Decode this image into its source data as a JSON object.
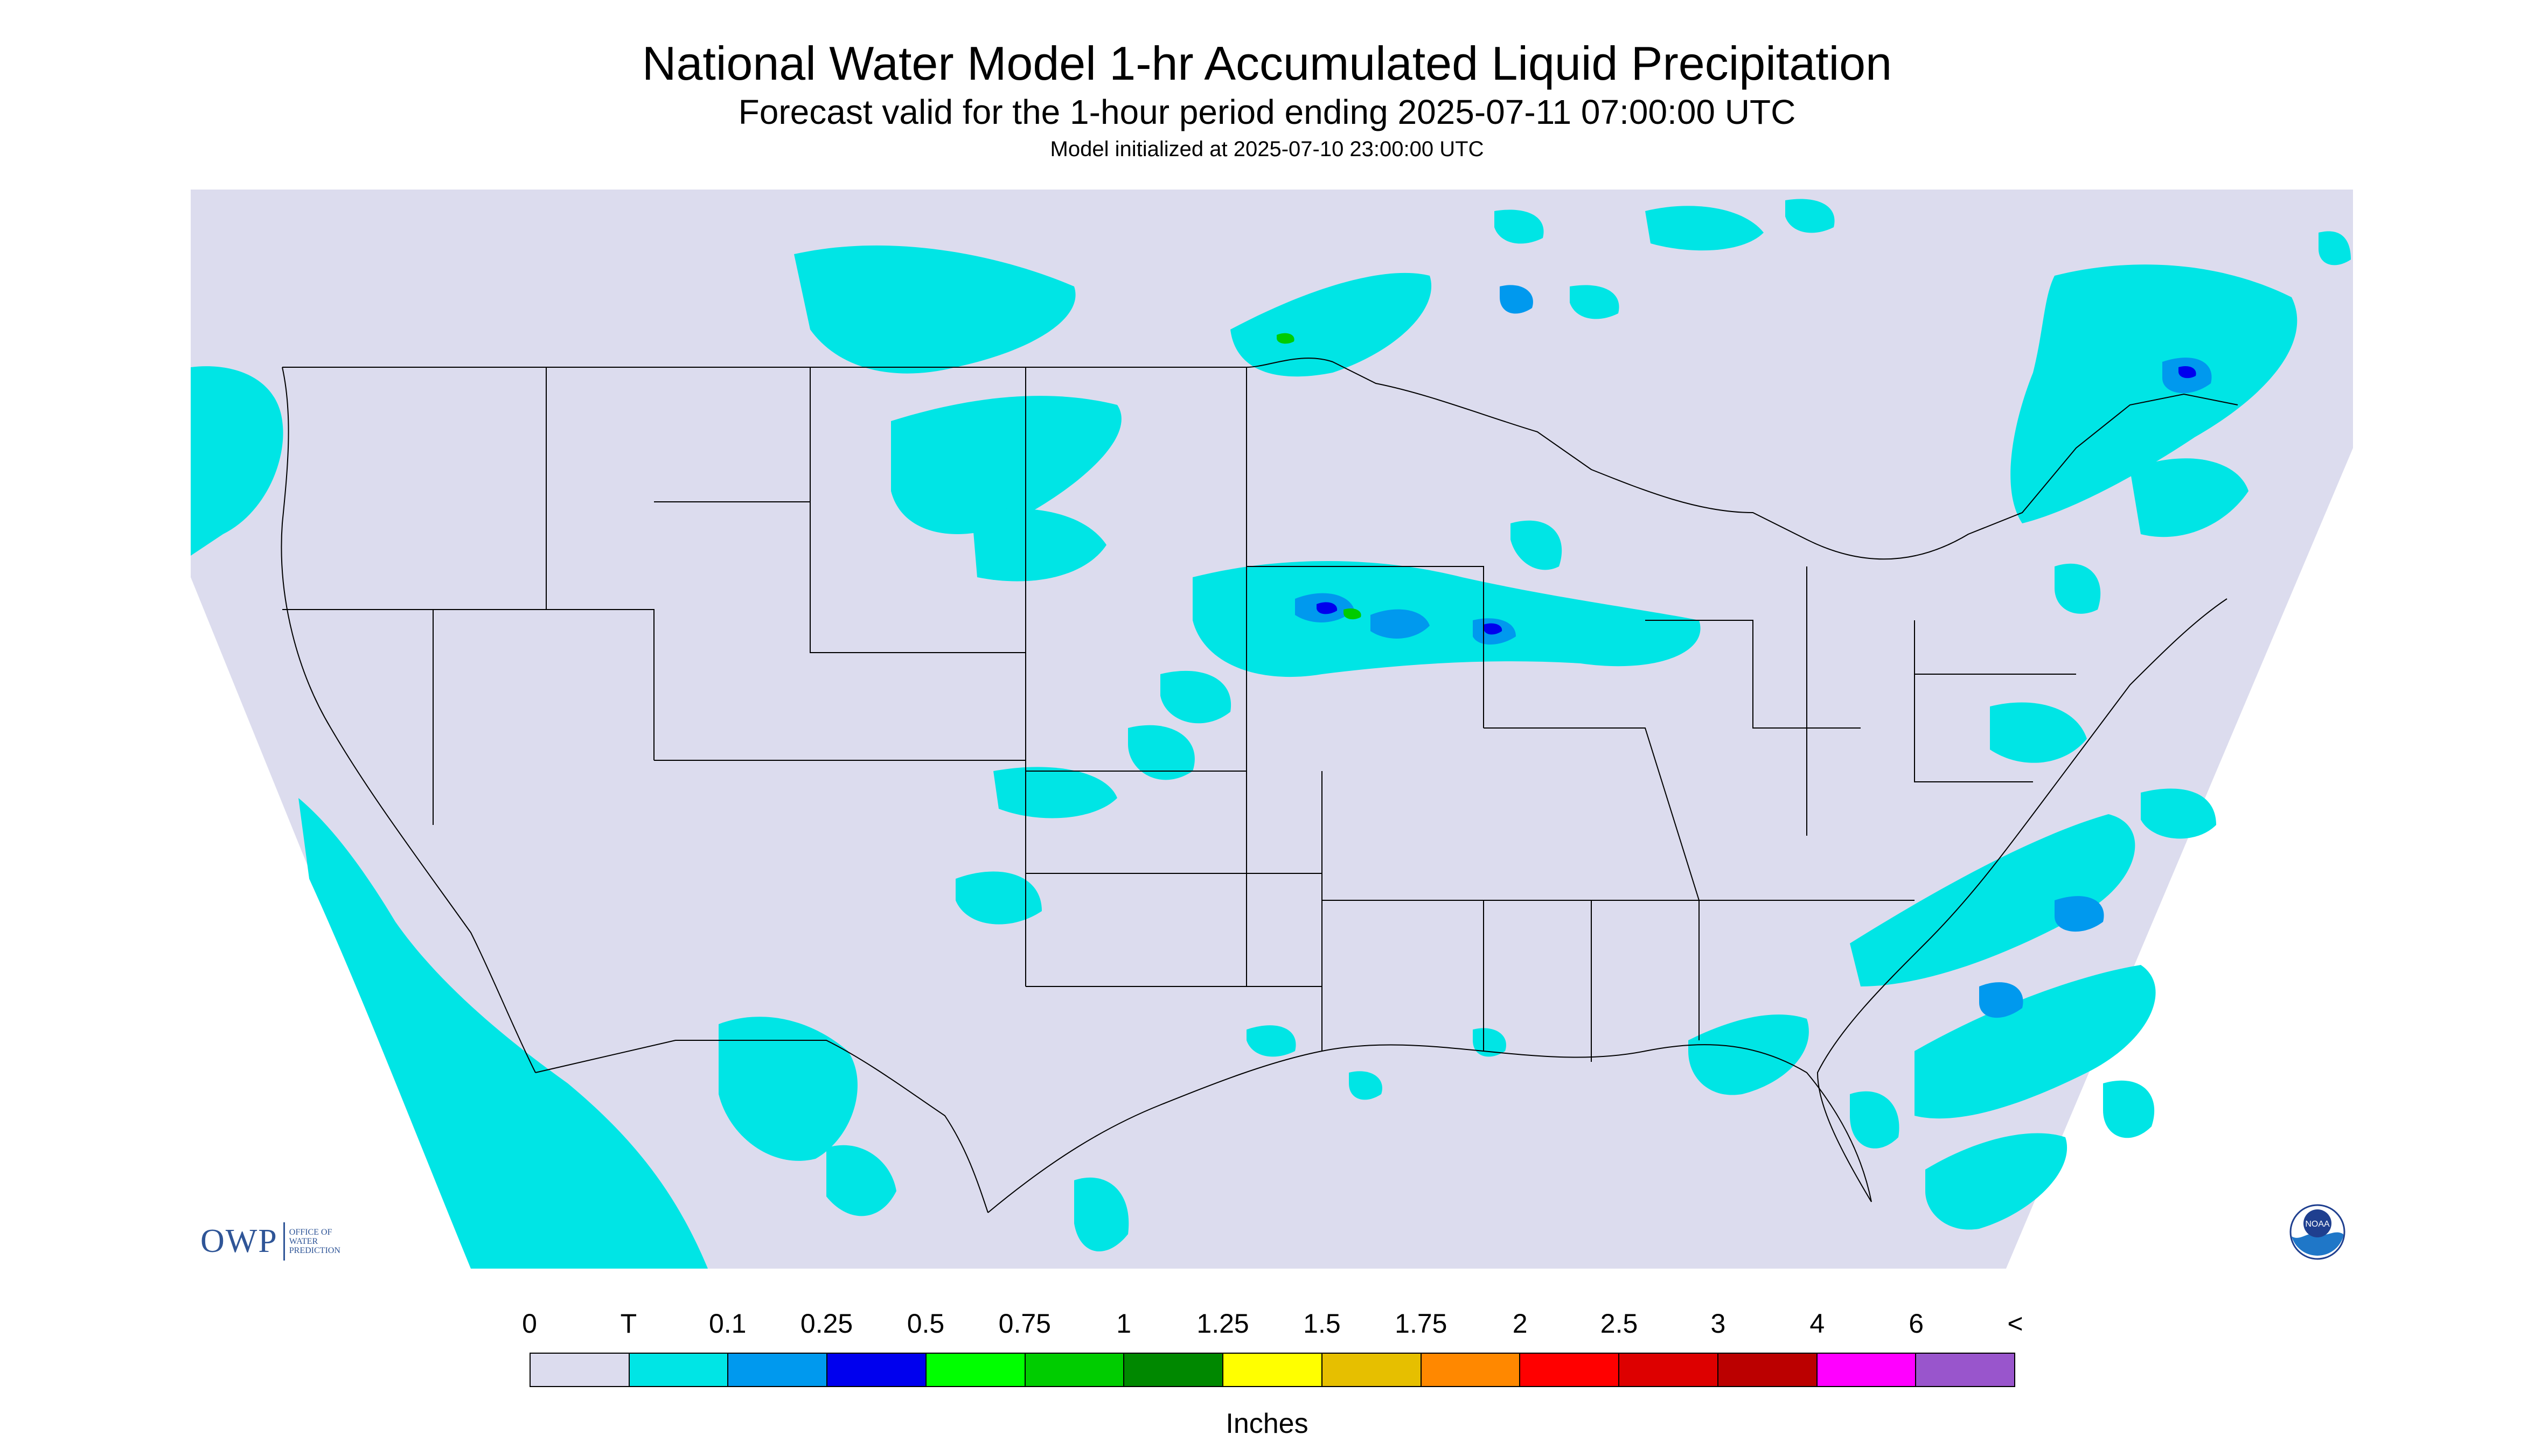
{
  "header": {
    "title": "National Water Model 1-hr Accumulated Liquid Precipitation",
    "subtitle": "Forecast valid for the 1-hour period ending 2025-07-11 07:00:00 UTC",
    "init": "Model initialized at 2025-07-10 23:00:00 UTC"
  },
  "colors": {
    "background": "#dcdcee",
    "trace": "#00e5e5",
    "coverage_outside": "#ffffff",
    "boundary": "#000000",
    "moderate": "#0099ee",
    "heavy": "#0000ee",
    "green": "#00cc00"
  },
  "legend": {
    "labels": [
      "0",
      "T",
      "0.1",
      "0.25",
      "0.5",
      "0.75",
      "1",
      "1.25",
      "1.5",
      "1.75",
      "2",
      "2.5",
      "3",
      "4",
      "6",
      "<"
    ],
    "colors": [
      "#dcdcee",
      "#00e5e5",
      "#0099ee",
      "#0000ee",
      "#00ff00",
      "#00cc00",
      "#008800",
      "#ffff00",
      "#e6bf00",
      "#ff8800",
      "#ff0000",
      "#dd0000",
      "#bb0000",
      "#ff00ff",
      "#9955cc"
    ],
    "units": "Inches"
  },
  "logos": {
    "owp_mark": "OWP",
    "owp_lines": [
      "Office of",
      "Water",
      "Prediction"
    ],
    "noaa_mark": "NOAA"
  },
  "map": {
    "region": "CONUS",
    "icons": [
      "owp-logo",
      "noaa-logo"
    ]
  }
}
